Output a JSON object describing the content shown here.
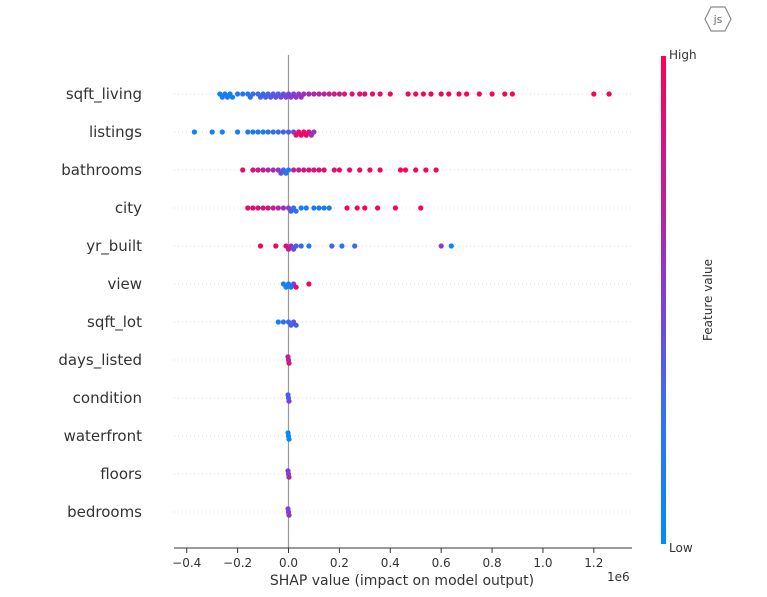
{
  "badge": {
    "text": "js",
    "icon": "js-hexagon-icon"
  },
  "chart_data": {
    "type": "scatter",
    "subtype": "shap-beeswarm",
    "title": "",
    "xlabel": "SHAP value (impact on model output)",
    "x_scale_label": "1e6",
    "xlim": [
      -0.45,
      1.35
    ],
    "xticks": [
      -0.4,
      -0.2,
      0.0,
      0.2,
      0.4,
      0.6,
      0.8,
      1.0,
      1.2
    ],
    "xtick_labels": [
      "−0.4",
      "−0.2",
      "0.0",
      "0.2",
      "0.4",
      "0.6",
      "0.8",
      "1.0",
      "1.2"
    ],
    "grid": false,
    "colorbar": {
      "label": "Feature value",
      "high_label": "High",
      "low_label": "Low",
      "low_color": "#008bfb",
      "high_color": "#ff0052"
    },
    "features": [
      {
        "name": "sqft_living",
        "points": [
          {
            "x": -0.27,
            "v": 0.05
          },
          {
            "x": -0.26,
            "v": 0.1
          },
          {
            "x": -0.25,
            "v": 0.08
          },
          {
            "x": -0.24,
            "v": 0.1
          },
          {
            "x": -0.23,
            "v": 0.12
          },
          {
            "x": -0.22,
            "v": 0.06
          },
          {
            "x": -0.2,
            "v": 0.1
          },
          {
            "x": -0.18,
            "v": 0.15
          },
          {
            "x": -0.16,
            "v": 0.12
          },
          {
            "x": -0.15,
            "v": 0.2
          },
          {
            "x": -0.14,
            "v": 0.18
          },
          {
            "x": -0.12,
            "v": 0.22
          },
          {
            "x": -0.11,
            "v": 0.25
          },
          {
            "x": -0.1,
            "v": 0.2
          },
          {
            "x": -0.09,
            "v": 0.3
          },
          {
            "x": -0.08,
            "v": 0.28
          },
          {
            "x": -0.07,
            "v": 0.32
          },
          {
            "x": -0.06,
            "v": 0.35
          },
          {
            "x": -0.05,
            "v": 0.38
          },
          {
            "x": -0.04,
            "v": 0.3
          },
          {
            "x": -0.03,
            "v": 0.42
          },
          {
            "x": -0.02,
            "v": 0.4
          },
          {
            "x": -0.01,
            "v": 0.45
          },
          {
            "x": 0.0,
            "v": 0.48
          },
          {
            "x": 0.01,
            "v": 0.5
          },
          {
            "x": 0.02,
            "v": 0.52
          },
          {
            "x": 0.03,
            "v": 0.55
          },
          {
            "x": 0.04,
            "v": 0.58
          },
          {
            "x": 0.05,
            "v": 0.6
          },
          {
            "x": 0.06,
            "v": 0.62
          },
          {
            "x": 0.08,
            "v": 0.65
          },
          {
            "x": 0.1,
            "v": 0.68
          },
          {
            "x": 0.12,
            "v": 0.7
          },
          {
            "x": 0.14,
            "v": 0.72
          },
          {
            "x": 0.16,
            "v": 0.75
          },
          {
            "x": 0.18,
            "v": 0.78
          },
          {
            "x": 0.2,
            "v": 0.8
          },
          {
            "x": 0.22,
            "v": 0.82
          },
          {
            "x": 0.25,
            "v": 0.85
          },
          {
            "x": 0.28,
            "v": 0.88
          },
          {
            "x": 0.3,
            "v": 0.9
          },
          {
            "x": 0.33,
            "v": 0.92
          },
          {
            "x": 0.36,
            "v": 0.94
          },
          {
            "x": 0.4,
            "v": 0.95
          },
          {
            "x": 0.47,
            "v": 0.96
          },
          {
            "x": 0.5,
            "v": 0.97
          },
          {
            "x": 0.53,
            "v": 0.97
          },
          {
            "x": 0.56,
            "v": 0.98
          },
          {
            "x": 0.6,
            "v": 0.98
          },
          {
            "x": 0.63,
            "v": 0.98
          },
          {
            "x": 0.67,
            "v": 0.99
          },
          {
            "x": 0.7,
            "v": 0.99
          },
          {
            "x": 0.75,
            "v": 0.99
          },
          {
            "x": 0.8,
            "v": 1.0
          },
          {
            "x": 0.85,
            "v": 1.0
          },
          {
            "x": 0.88,
            "v": 1.0
          },
          {
            "x": 1.2,
            "v": 1.0
          },
          {
            "x": 1.26,
            "v": 1.0
          }
        ]
      },
      {
        "name": "listings",
        "points": [
          {
            "x": -0.37,
            "v": 0.05
          },
          {
            "x": -0.3,
            "v": 0.1
          },
          {
            "x": -0.26,
            "v": 0.05
          },
          {
            "x": -0.2,
            "v": 0.1
          },
          {
            "x": -0.16,
            "v": 0.12
          },
          {
            "x": -0.14,
            "v": 0.1
          },
          {
            "x": -0.12,
            "v": 0.15
          },
          {
            "x": -0.1,
            "v": 0.12
          },
          {
            "x": -0.08,
            "v": 0.18
          },
          {
            "x": -0.06,
            "v": 0.2
          },
          {
            "x": -0.04,
            "v": 0.22
          },
          {
            "x": -0.02,
            "v": 0.25
          },
          {
            "x": 0.0,
            "v": 0.3
          },
          {
            "x": 0.02,
            "v": 0.5
          },
          {
            "x": 0.03,
            "v": 0.85
          },
          {
            "x": 0.04,
            "v": 0.9
          },
          {
            "x": 0.05,
            "v": 0.95
          },
          {
            "x": 0.06,
            "v": 0.92
          },
          {
            "x": 0.07,
            "v": 0.95
          },
          {
            "x": 0.08,
            "v": 0.9
          },
          {
            "x": 0.09,
            "v": 0.6
          },
          {
            "x": 0.1,
            "v": 0.55
          }
        ]
      },
      {
        "name": "bathrooms",
        "points": [
          {
            "x": -0.18,
            "v": 0.9
          },
          {
            "x": -0.14,
            "v": 0.85
          },
          {
            "x": -0.12,
            "v": 0.8
          },
          {
            "x": -0.1,
            "v": 0.75
          },
          {
            "x": -0.08,
            "v": 0.7
          },
          {
            "x": -0.06,
            "v": 0.65
          },
          {
            "x": -0.04,
            "v": 0.6
          },
          {
            "x": -0.03,
            "v": 0.4
          },
          {
            "x": -0.02,
            "v": 0.25
          },
          {
            "x": -0.01,
            "v": 0.15
          },
          {
            "x": 0.0,
            "v": 0.1
          },
          {
            "x": 0.02,
            "v": 0.75
          },
          {
            "x": 0.04,
            "v": 0.8
          },
          {
            "x": 0.06,
            "v": 0.82
          },
          {
            "x": 0.08,
            "v": 0.85
          },
          {
            "x": 0.1,
            "v": 0.85
          },
          {
            "x": 0.12,
            "v": 0.88
          },
          {
            "x": 0.14,
            "v": 0.9
          },
          {
            "x": 0.18,
            "v": 0.9
          },
          {
            "x": 0.2,
            "v": 0.92
          },
          {
            "x": 0.24,
            "v": 0.94
          },
          {
            "x": 0.28,
            "v": 0.95
          },
          {
            "x": 0.32,
            "v": 0.96
          },
          {
            "x": 0.36,
            "v": 0.97
          },
          {
            "x": 0.44,
            "v": 0.98
          },
          {
            "x": 0.46,
            "v": 0.98
          },
          {
            "x": 0.5,
            "v": 0.99
          },
          {
            "x": 0.54,
            "v": 1.0
          },
          {
            "x": 0.58,
            "v": 1.0
          }
        ]
      },
      {
        "name": "city",
        "points": [
          {
            "x": -0.16,
            "v": 0.95
          },
          {
            "x": -0.14,
            "v": 0.9
          },
          {
            "x": -0.12,
            "v": 0.85
          },
          {
            "x": -0.1,
            "v": 0.8
          },
          {
            "x": -0.08,
            "v": 0.85
          },
          {
            "x": -0.06,
            "v": 0.75
          },
          {
            "x": -0.04,
            "v": 0.7
          },
          {
            "x": -0.02,
            "v": 0.65
          },
          {
            "x": 0.0,
            "v": 0.5
          },
          {
            "x": 0.01,
            "v": 0.3
          },
          {
            "x": 0.02,
            "v": 0.2
          },
          {
            "x": 0.03,
            "v": 0.15
          },
          {
            "x": 0.05,
            "v": 0.12
          },
          {
            "x": 0.07,
            "v": 0.1
          },
          {
            "x": 0.1,
            "v": 0.1
          },
          {
            "x": 0.12,
            "v": 0.12
          },
          {
            "x": 0.14,
            "v": 0.08
          },
          {
            "x": 0.16,
            "v": 0.1
          },
          {
            "x": 0.23,
            "v": 0.95
          },
          {
            "x": 0.27,
            "v": 0.95
          },
          {
            "x": 0.3,
            "v": 1.0
          },
          {
            "x": 0.35,
            "v": 0.98
          },
          {
            "x": 0.42,
            "v": 1.0
          },
          {
            "x": 0.52,
            "v": 1.0
          }
        ]
      },
      {
        "name": "yr_built",
        "points": [
          {
            "x": -0.11,
            "v": 1.0
          },
          {
            "x": -0.05,
            "v": 0.95
          },
          {
            "x": -0.01,
            "v": 0.9
          },
          {
            "x": 0.0,
            "v": 0.8
          },
          {
            "x": 0.01,
            "v": 0.6
          },
          {
            "x": 0.02,
            "v": 0.4
          },
          {
            "x": 0.03,
            "v": 0.3
          },
          {
            "x": 0.05,
            "v": 0.2
          },
          {
            "x": 0.08,
            "v": 0.15
          },
          {
            "x": 0.17,
            "v": 0.25
          },
          {
            "x": 0.21,
            "v": 0.18
          },
          {
            "x": 0.26,
            "v": 0.2
          },
          {
            "x": 0.6,
            "v": 0.55
          },
          {
            "x": 0.64,
            "v": 0.02
          }
        ]
      },
      {
        "name": "view",
        "points": [
          {
            "x": -0.02,
            "v": 0.1
          },
          {
            "x": -0.01,
            "v": 0.05
          },
          {
            "x": 0.0,
            "v": 0.08
          },
          {
            "x": 0.01,
            "v": 0.1
          },
          {
            "x": 0.02,
            "v": 0.5
          },
          {
            "x": 0.03,
            "v": 0.9
          },
          {
            "x": 0.08,
            "v": 0.95
          }
        ]
      },
      {
        "name": "sqft_lot",
        "points": [
          {
            "x": -0.04,
            "v": 0.1
          },
          {
            "x": -0.02,
            "v": 0.15
          },
          {
            "x": 0.0,
            "v": 0.2
          },
          {
            "x": 0.01,
            "v": 0.3
          },
          {
            "x": 0.02,
            "v": 0.35
          },
          {
            "x": 0.03,
            "v": 0.3
          }
        ]
      },
      {
        "name": "days_listed",
        "points": [
          {
            "x": 0.0,
            "v": 0.7
          },
          {
            "x": 0.002,
            "v": 0.8
          },
          {
            "x": -0.002,
            "v": 0.75
          }
        ]
      },
      {
        "name": "condition",
        "points": [
          {
            "x": 0.0,
            "v": 0.2
          },
          {
            "x": 0.002,
            "v": 0.5
          },
          {
            "x": -0.002,
            "v": 0.3
          }
        ]
      },
      {
        "name": "waterfront",
        "points": [
          {
            "x": 0.0,
            "v": 0.02
          },
          {
            "x": 0.002,
            "v": 0.02
          },
          {
            "x": -0.002,
            "v": 0.02
          }
        ]
      },
      {
        "name": "floors",
        "points": [
          {
            "x": 0.0,
            "v": 0.4
          },
          {
            "x": 0.002,
            "v": 0.7
          },
          {
            "x": -0.002,
            "v": 0.55
          }
        ]
      },
      {
        "name": "bedrooms",
        "points": [
          {
            "x": 0.0,
            "v": 0.5
          },
          {
            "x": 0.002,
            "v": 0.6
          },
          {
            "x": -0.002,
            "v": 0.45
          }
        ]
      }
    ]
  }
}
